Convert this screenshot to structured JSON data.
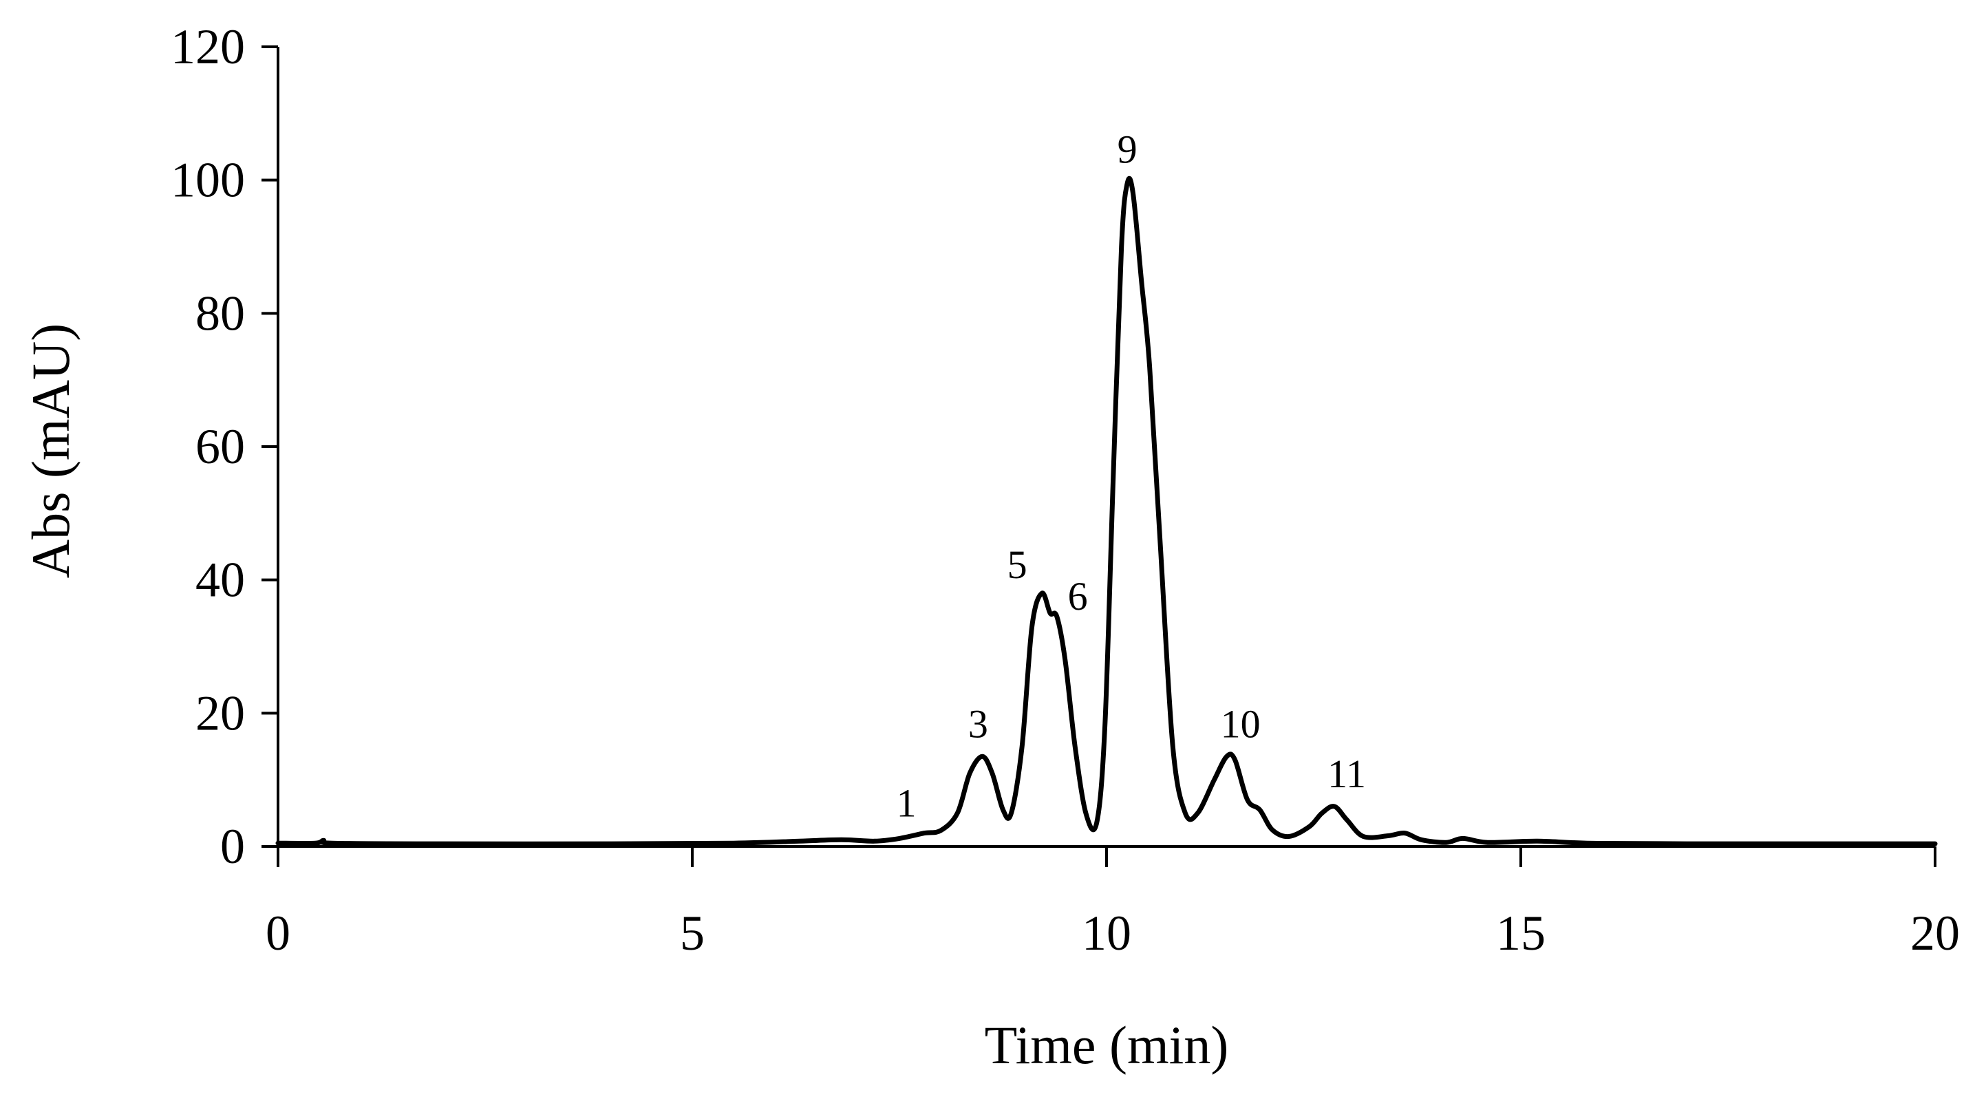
{
  "chart_data": {
    "type": "line",
    "title": "",
    "xlabel": "Time (min)",
    "ylabel": "Abs (mAU)",
    "xlim": [
      0,
      20
    ],
    "ylim": [
      0,
      120
    ],
    "x_ticks": [
      0,
      5,
      10,
      15,
      20
    ],
    "y_ticks": [
      0,
      20,
      40,
      60,
      80,
      100,
      120
    ],
    "grid": false,
    "legend": "none",
    "series": [
      {
        "color": "#000000",
        "points": [
          [
            0,
            0.5
          ],
          [
            0.45,
            0.5
          ],
          [
            0.55,
            0.9
          ],
          [
            0.65,
            0.5
          ],
          [
            2,
            0.4
          ],
          [
            4,
            0.4
          ],
          [
            5.5,
            0.5
          ],
          [
            6.3,
            0.8
          ],
          [
            6.8,
            1.0
          ],
          [
            7.2,
            0.8
          ],
          [
            7.5,
            1.2
          ],
          [
            7.8,
            2.0
          ],
          [
            8.0,
            2.4
          ],
          [
            8.2,
            5.0
          ],
          [
            8.35,
            11.0
          ],
          [
            8.5,
            13.5
          ],
          [
            8.62,
            11.0
          ],
          [
            8.75,
            5.5
          ],
          [
            8.85,
            5.0
          ],
          [
            8.98,
            15.0
          ],
          [
            9.1,
            33.0
          ],
          [
            9.22,
            38.0
          ],
          [
            9.32,
            35.0
          ],
          [
            9.4,
            34.5
          ],
          [
            9.5,
            28.0
          ],
          [
            9.62,
            15.0
          ],
          [
            9.75,
            5.0
          ],
          [
            9.88,
            3.5
          ],
          [
            9.98,
            18.0
          ],
          [
            10.08,
            55.0
          ],
          [
            10.18,
            90.0
          ],
          [
            10.25,
            99.5
          ],
          [
            10.32,
            98.0
          ],
          [
            10.42,
            85.0
          ],
          [
            10.52,
            72.0
          ],
          [
            10.65,
            45.0
          ],
          [
            10.8,
            15.0
          ],
          [
            10.95,
            5.0
          ],
          [
            11.1,
            5.0
          ],
          [
            11.3,
            10.0
          ],
          [
            11.45,
            13.5
          ],
          [
            11.55,
            13.0
          ],
          [
            11.7,
            7.0
          ],
          [
            11.85,
            5.5
          ],
          [
            12.0,
            2.5
          ],
          [
            12.2,
            1.5
          ],
          [
            12.45,
            3.0
          ],
          [
            12.6,
            5.0
          ],
          [
            12.75,
            6.0
          ],
          [
            12.9,
            4.0
          ],
          [
            13.1,
            1.5
          ],
          [
            13.4,
            1.6
          ],
          [
            13.6,
            2.0
          ],
          [
            13.8,
            1.0
          ],
          [
            14.1,
            0.6
          ],
          [
            14.3,
            1.2
          ],
          [
            14.6,
            0.6
          ],
          [
            15.2,
            0.8
          ],
          [
            15.8,
            0.5
          ],
          [
            17,
            0.4
          ],
          [
            20,
            0.4
          ]
        ]
      }
    ],
    "annotations": [
      {
        "text": "1",
        "x": 7.7,
        "y": 2.0
      },
      {
        "text": "3",
        "x": 8.5,
        "y": 13.5
      },
      {
        "text": "5",
        "x": 9.22,
        "y": 38.0
      },
      {
        "text": "6",
        "x": 9.42,
        "y": 34.5
      },
      {
        "text": "9",
        "x": 10.25,
        "y": 99.5
      },
      {
        "text": "10",
        "x": 11.45,
        "y": 13.5
      },
      {
        "text": "11",
        "x": 12.75,
        "y": 6.0
      }
    ]
  }
}
